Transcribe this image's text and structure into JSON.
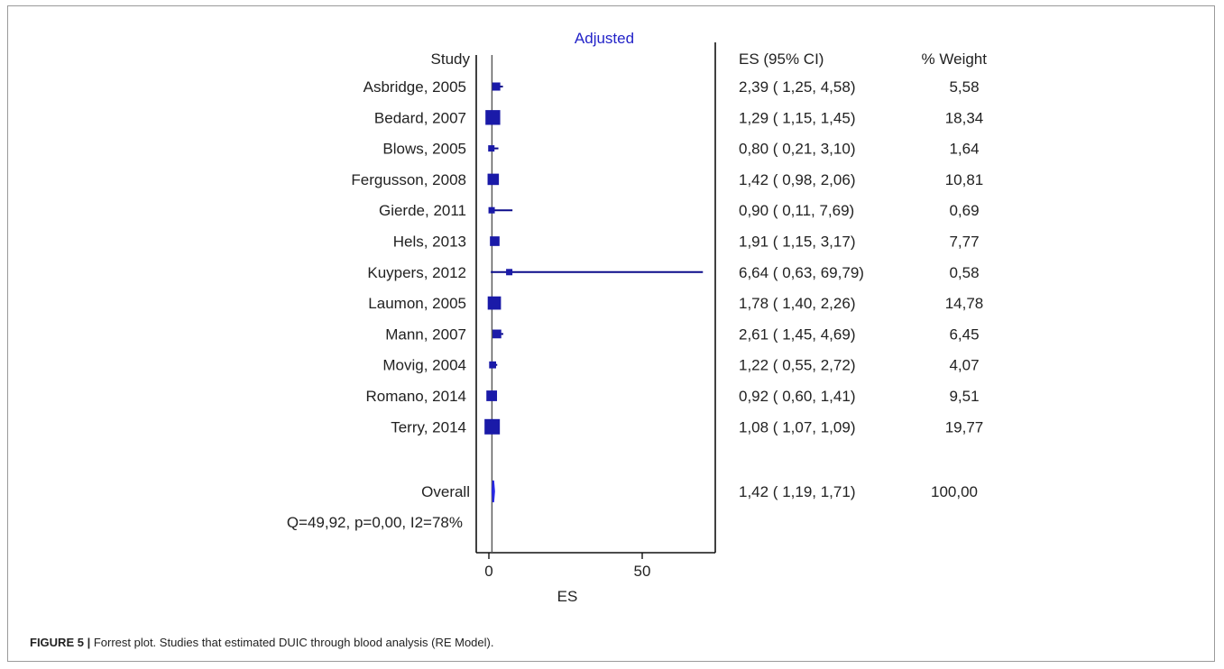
{
  "chart_data": {
    "type": "forest",
    "title": "Adjusted",
    "xlabel": "ES",
    "xticks": [
      0,
      50
    ],
    "xlim": [
      -2,
      73
    ],
    "null_line": 1,
    "col_study": "Study",
    "col_es": "ES (95% CI)",
    "col_weight": "% Weight",
    "studies": [
      {
        "name": "Asbridge, 2005",
        "es": 2.39,
        "lo": 1.25,
        "hi": 4.58,
        "es_text": "2,39 ( 1,25, 4,58)",
        "weight": 5.58,
        "weight_text": "5,58"
      },
      {
        "name": "Bedard, 2007",
        "es": 1.29,
        "lo": 1.15,
        "hi": 1.45,
        "es_text": "1,29 ( 1,15, 1,45)",
        "weight": 18.34,
        "weight_text": "18,34"
      },
      {
        "name": "Blows, 2005",
        "es": 0.8,
        "lo": 0.21,
        "hi": 3.1,
        "es_text": "0,80 ( 0,21, 3,10)",
        "weight": 1.64,
        "weight_text": "1,64"
      },
      {
        "name": "Fergusson, 2008",
        "es": 1.42,
        "lo": 0.98,
        "hi": 2.06,
        "es_text": "1,42 ( 0,98, 2,06)",
        "weight": 10.81,
        "weight_text": "10,81"
      },
      {
        "name": "Gierde, 2011",
        "es": 0.9,
        "lo": 0.11,
        "hi": 7.69,
        "es_text": "0,90 ( 0,11, 7,69)",
        "weight": 0.69,
        "weight_text": "0,69"
      },
      {
        "name": "Hels, 2013",
        "es": 1.91,
        "lo": 1.15,
        "hi": 3.17,
        "es_text": "1,91 ( 1,15, 3,17)",
        "weight": 7.77,
        "weight_text": "7,77"
      },
      {
        "name": "Kuypers, 2012",
        "es": 6.64,
        "lo": 0.63,
        "hi": 69.79,
        "es_text": "6,64 ( 0,63, 69,79)",
        "weight": 0.58,
        "weight_text": "0,58"
      },
      {
        "name": "Laumon, 2005",
        "es": 1.78,
        "lo": 1.4,
        "hi": 2.26,
        "es_text": "1,78 ( 1,40, 2,26)",
        "weight": 14.78,
        "weight_text": "14,78"
      },
      {
        "name": "Mann, 2007",
        "es": 2.61,
        "lo": 1.45,
        "hi": 4.69,
        "es_text": "2,61 ( 1,45, 4,69)",
        "weight": 6.45,
        "weight_text": "6,45"
      },
      {
        "name": "Movig, 2004",
        "es": 1.22,
        "lo": 0.55,
        "hi": 2.72,
        "es_text": "1,22 ( 0,55, 2,72)",
        "weight": 4.07,
        "weight_text": "4,07"
      },
      {
        "name": "Romano, 2014",
        "es": 0.92,
        "lo": 0.6,
        "hi": 1.41,
        "es_text": "0,92 ( 0,60, 1,41)",
        "weight": 9.51,
        "weight_text": "9,51"
      },
      {
        "name": "Terry, 2014",
        "es": 1.08,
        "lo": 1.07,
        "hi": 1.09,
        "es_text": "1,08 ( 1,07, 1,09)",
        "weight": 19.77,
        "weight_text": "19,77"
      }
    ],
    "overall": {
      "name": "Overall",
      "es": 1.42,
      "lo": 1.19,
      "hi": 1.71,
      "es_text": "1,42 ( 1,19, 1,71)",
      "weight_text": "100,00"
    },
    "heterogeneity": "Q=49,92, p=0,00, I2=78%",
    "colors": {
      "marker": "#1a1aa8",
      "ci_line": "#0b0b8a",
      "diamond": "#2727e6",
      "title": "#2323c8",
      "axis": "#111111"
    }
  },
  "caption": {
    "label": "FIGURE 5 |",
    "text": " Forrest plot. Studies that estimated DUIC through blood analysis (RE Model)."
  }
}
